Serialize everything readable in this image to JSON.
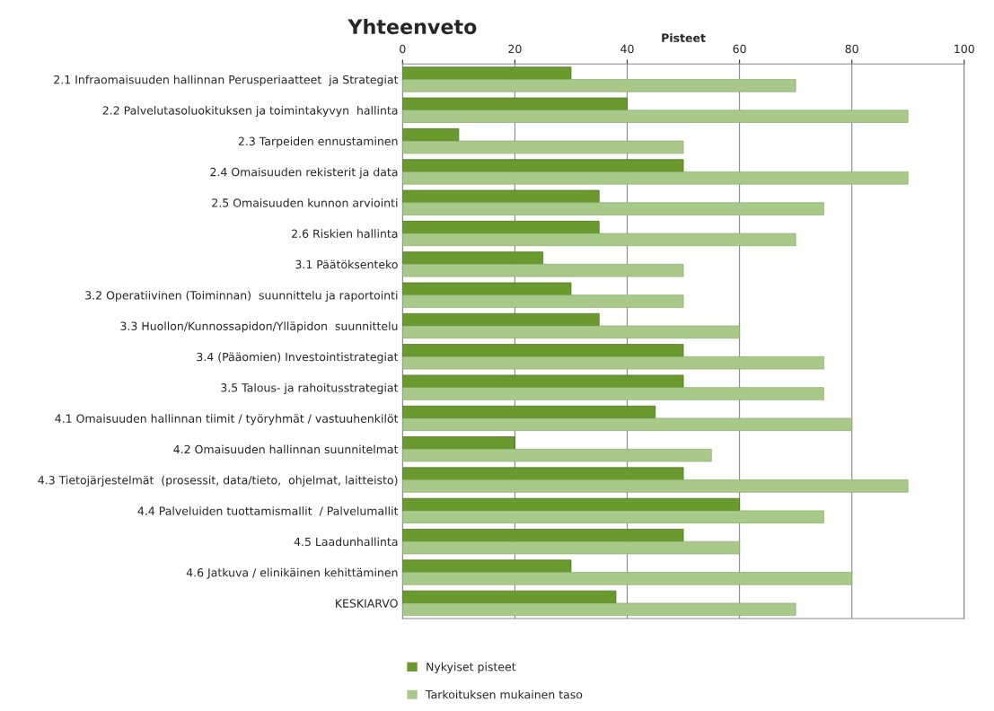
{
  "chart_data": {
    "type": "bar",
    "orientation": "horizontal",
    "title": "Yhteenveto",
    "xlabel": "Pisteet",
    "categories": [
      "2.1 Infraomaisuuden hallinnan Perusperiaatteet  ja Strategiat",
      "2.2 Palvelutasoluokituksen ja toimintakyvyn  hallinta",
      "2.3 Tarpeiden ennustaminen",
      "2.4 Omaisuuden rekisterit ja data",
      "2.5 Omaisuuden kunnon arviointi",
      "2.6 Riskien hallinta",
      "3.1 Päätöksenteko",
      "3.2 Operatiivinen (Toiminnan)  suunnittelu ja raportointi",
      "3.3 Huollon/Kunnossapidon/Ylläpidon  suunnittelu",
      "3.4 (Pääomien) Investointistrategiat",
      "3.5 Talous- ja rahoitusstrategiat",
      "4.1 Omaisuuden hallinnan tiimit / työryhmät / vastuuhenkilöt",
      "4.2 Omaisuuden hallinnan suunnitelmat",
      "4.3 Tietojärjestelmät  (prosessit, data/tieto,  ohjelmat, laitteisto)",
      "4.4 Palveluiden tuottamismallit  / Palvelumallit",
      "4.5 Laadunhallinta",
      "4.6 Jatkuva / elinikäinen kehittäminen",
      "KESKIARVO"
    ],
    "series": [
      {
        "name": "Nykyiset pisteet",
        "color": "#6a9a2e",
        "values": [
          30,
          40,
          10,
          50,
          35,
          35,
          25,
          30,
          35,
          50,
          50,
          45,
          20,
          50,
          60,
          50,
          30,
          38
        ]
      },
      {
        "name": "Tarkoituksen mukainen taso",
        "color": "#a8c98a",
        "values": [
          70,
          90,
          50,
          90,
          75,
          70,
          50,
          50,
          60,
          75,
          75,
          80,
          55,
          90,
          75,
          60,
          80,
          70
        ]
      }
    ],
    "xlim": [
      0,
      100
    ],
    "xticks": [
      0,
      20,
      40,
      60,
      80,
      100
    ],
    "grid": "x",
    "legend": "bottom"
  }
}
